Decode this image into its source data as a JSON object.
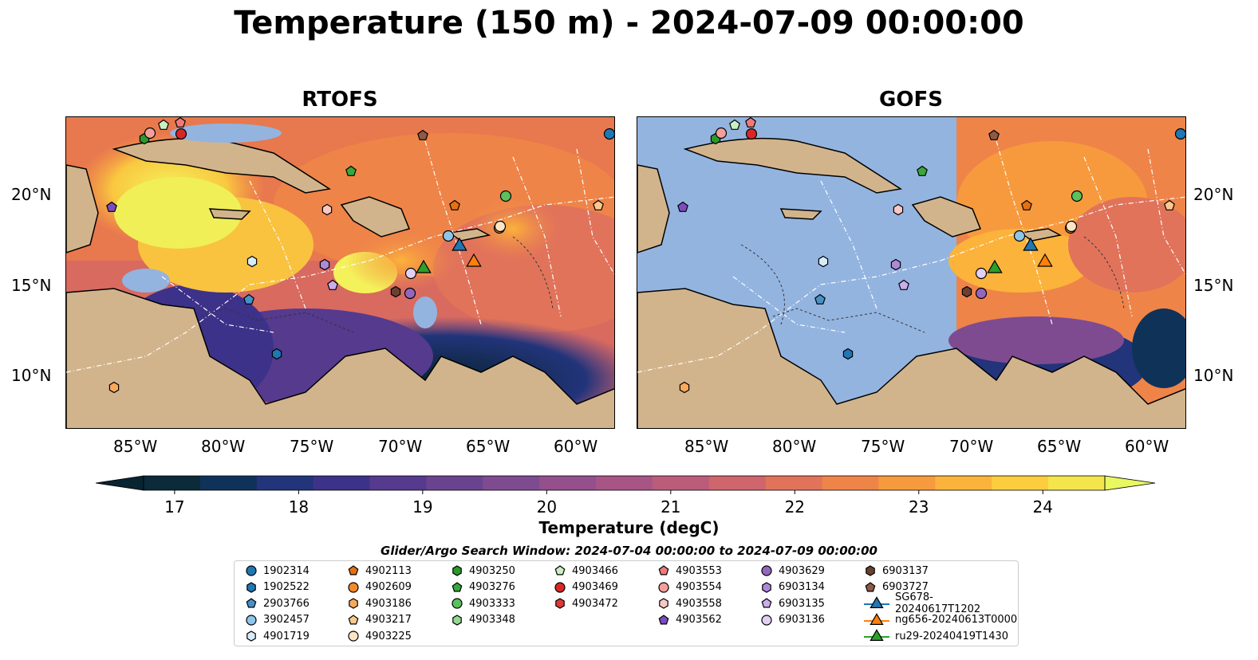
{
  "title": "Temperature (150 m) - 2024-07-09 00:00:00",
  "panels": [
    {
      "title": "RTOFS"
    },
    {
      "title": "GOFS"
    }
  ],
  "axes": {
    "lat_ticks": [
      "20°N",
      "15°N",
      "10°N"
    ],
    "lon_ticks": [
      "85°W",
      "80°W",
      "75°W",
      "70°W",
      "65°W",
      "60°W"
    ]
  },
  "colorbar": {
    "label": "Temperature (degC)",
    "ticks": [
      "17",
      "18",
      "19",
      "20",
      "21",
      "22",
      "23",
      "24"
    ],
    "min": 16.75,
    "max": 24.5,
    "colors": [
      "#0b2a3a",
      "#0f3259",
      "#22347a",
      "#3d3289",
      "#553a8e",
      "#6a4390",
      "#7e4b91",
      "#944f8d",
      "#a85586",
      "#bc5c7b",
      "#cf656d",
      "#e1735b",
      "#ef8449",
      "#f79a3e",
      "#fbb33b",
      "#fccd3f",
      "#f4e54d"
    ],
    "over_color": "#e9f761",
    "under_color": "#082430"
  },
  "search_window": "Glider/Argo Search Window: 2024-07-04 00:00:00 to 2024-07-09 00:00:00",
  "legend": [
    {
      "label": "1902314",
      "color": "#1f77b4",
      "marker": "circle"
    },
    {
      "label": "1902522",
      "color": "#1f77b4",
      "marker": "hexagon"
    },
    {
      "label": "2903766",
      "color": "#4a90c8",
      "marker": "pentagon"
    },
    {
      "label": "3902457",
      "color": "#8ec6e8",
      "marker": "circle"
    },
    {
      "label": "4901719",
      "color": "#d6ecf8",
      "marker": "hexagon"
    },
    {
      "label": "4902113",
      "color": "#e6700f",
      "marker": "pentagon"
    },
    {
      "label": "4902609",
      "color": "#f08a2a",
      "marker": "circle"
    },
    {
      "label": "4903186",
      "color": "#f9a95a",
      "marker": "hexagon"
    },
    {
      "label": "4903217",
      "color": "#fcc88e",
      "marker": "pentagon"
    },
    {
      "label": "4903225",
      "color": "#fde4c4",
      "marker": "circle"
    },
    {
      "label": "4903250",
      "color": "#2a9a2a",
      "marker": "hexagon"
    },
    {
      "label": "4903276",
      "color": "#38a838",
      "marker": "pentagon"
    },
    {
      "label": "4903333",
      "color": "#5cc05c",
      "marker": "circle"
    },
    {
      "label": "4903348",
      "color": "#93d893",
      "marker": "hexagon"
    },
    {
      "label": "4903466",
      "color": "#c8f0c0",
      "marker": "pentagon"
    },
    {
      "label": "4903469",
      "color": "#d62728",
      "marker": "circle"
    },
    {
      "label": "4903472",
      "color": "#de3838",
      "marker": "hexagon"
    },
    {
      "label": "4903553",
      "color": "#f07a7a",
      "marker": "pentagon"
    },
    {
      "label": "4903554",
      "color": "#f4a09a",
      "marker": "circle"
    },
    {
      "label": "4903558",
      "color": "#f9c8c4",
      "marker": "hexagon"
    },
    {
      "label": "4903562",
      "color": "#7b4cc0",
      "marker": "pentagon"
    },
    {
      "label": "4903629",
      "color": "#9467bd",
      "marker": "circle"
    },
    {
      "label": "6903134",
      "color": "#ad8ad8",
      "marker": "hexagon"
    },
    {
      "label": "6903135",
      "color": "#c9aeea",
      "marker": "pentagon"
    },
    {
      "label": "6903136",
      "color": "#e2d0f4",
      "marker": "circle"
    },
    {
      "label": "6903137",
      "color": "#6b4030",
      "marker": "hexagon"
    },
    {
      "label": "6903727",
      "color": "#8c5a46",
      "marker": "pentagon"
    },
    {
      "label": "SG678-20240617T1202",
      "color": "#1f77b4",
      "marker": "triangle"
    },
    {
      "label": "ng656-20240613T0000",
      "color": "#ff7f0e",
      "marker": "triangle"
    },
    {
      "label": "ru29-20240419T1430",
      "color": "#2ca02c",
      "marker": "triangle"
    }
  ],
  "map_colors": {
    "land": "#d2b48c",
    "shallow": "#94b4e0",
    "gofs_masked": "#94b4e0"
  }
}
